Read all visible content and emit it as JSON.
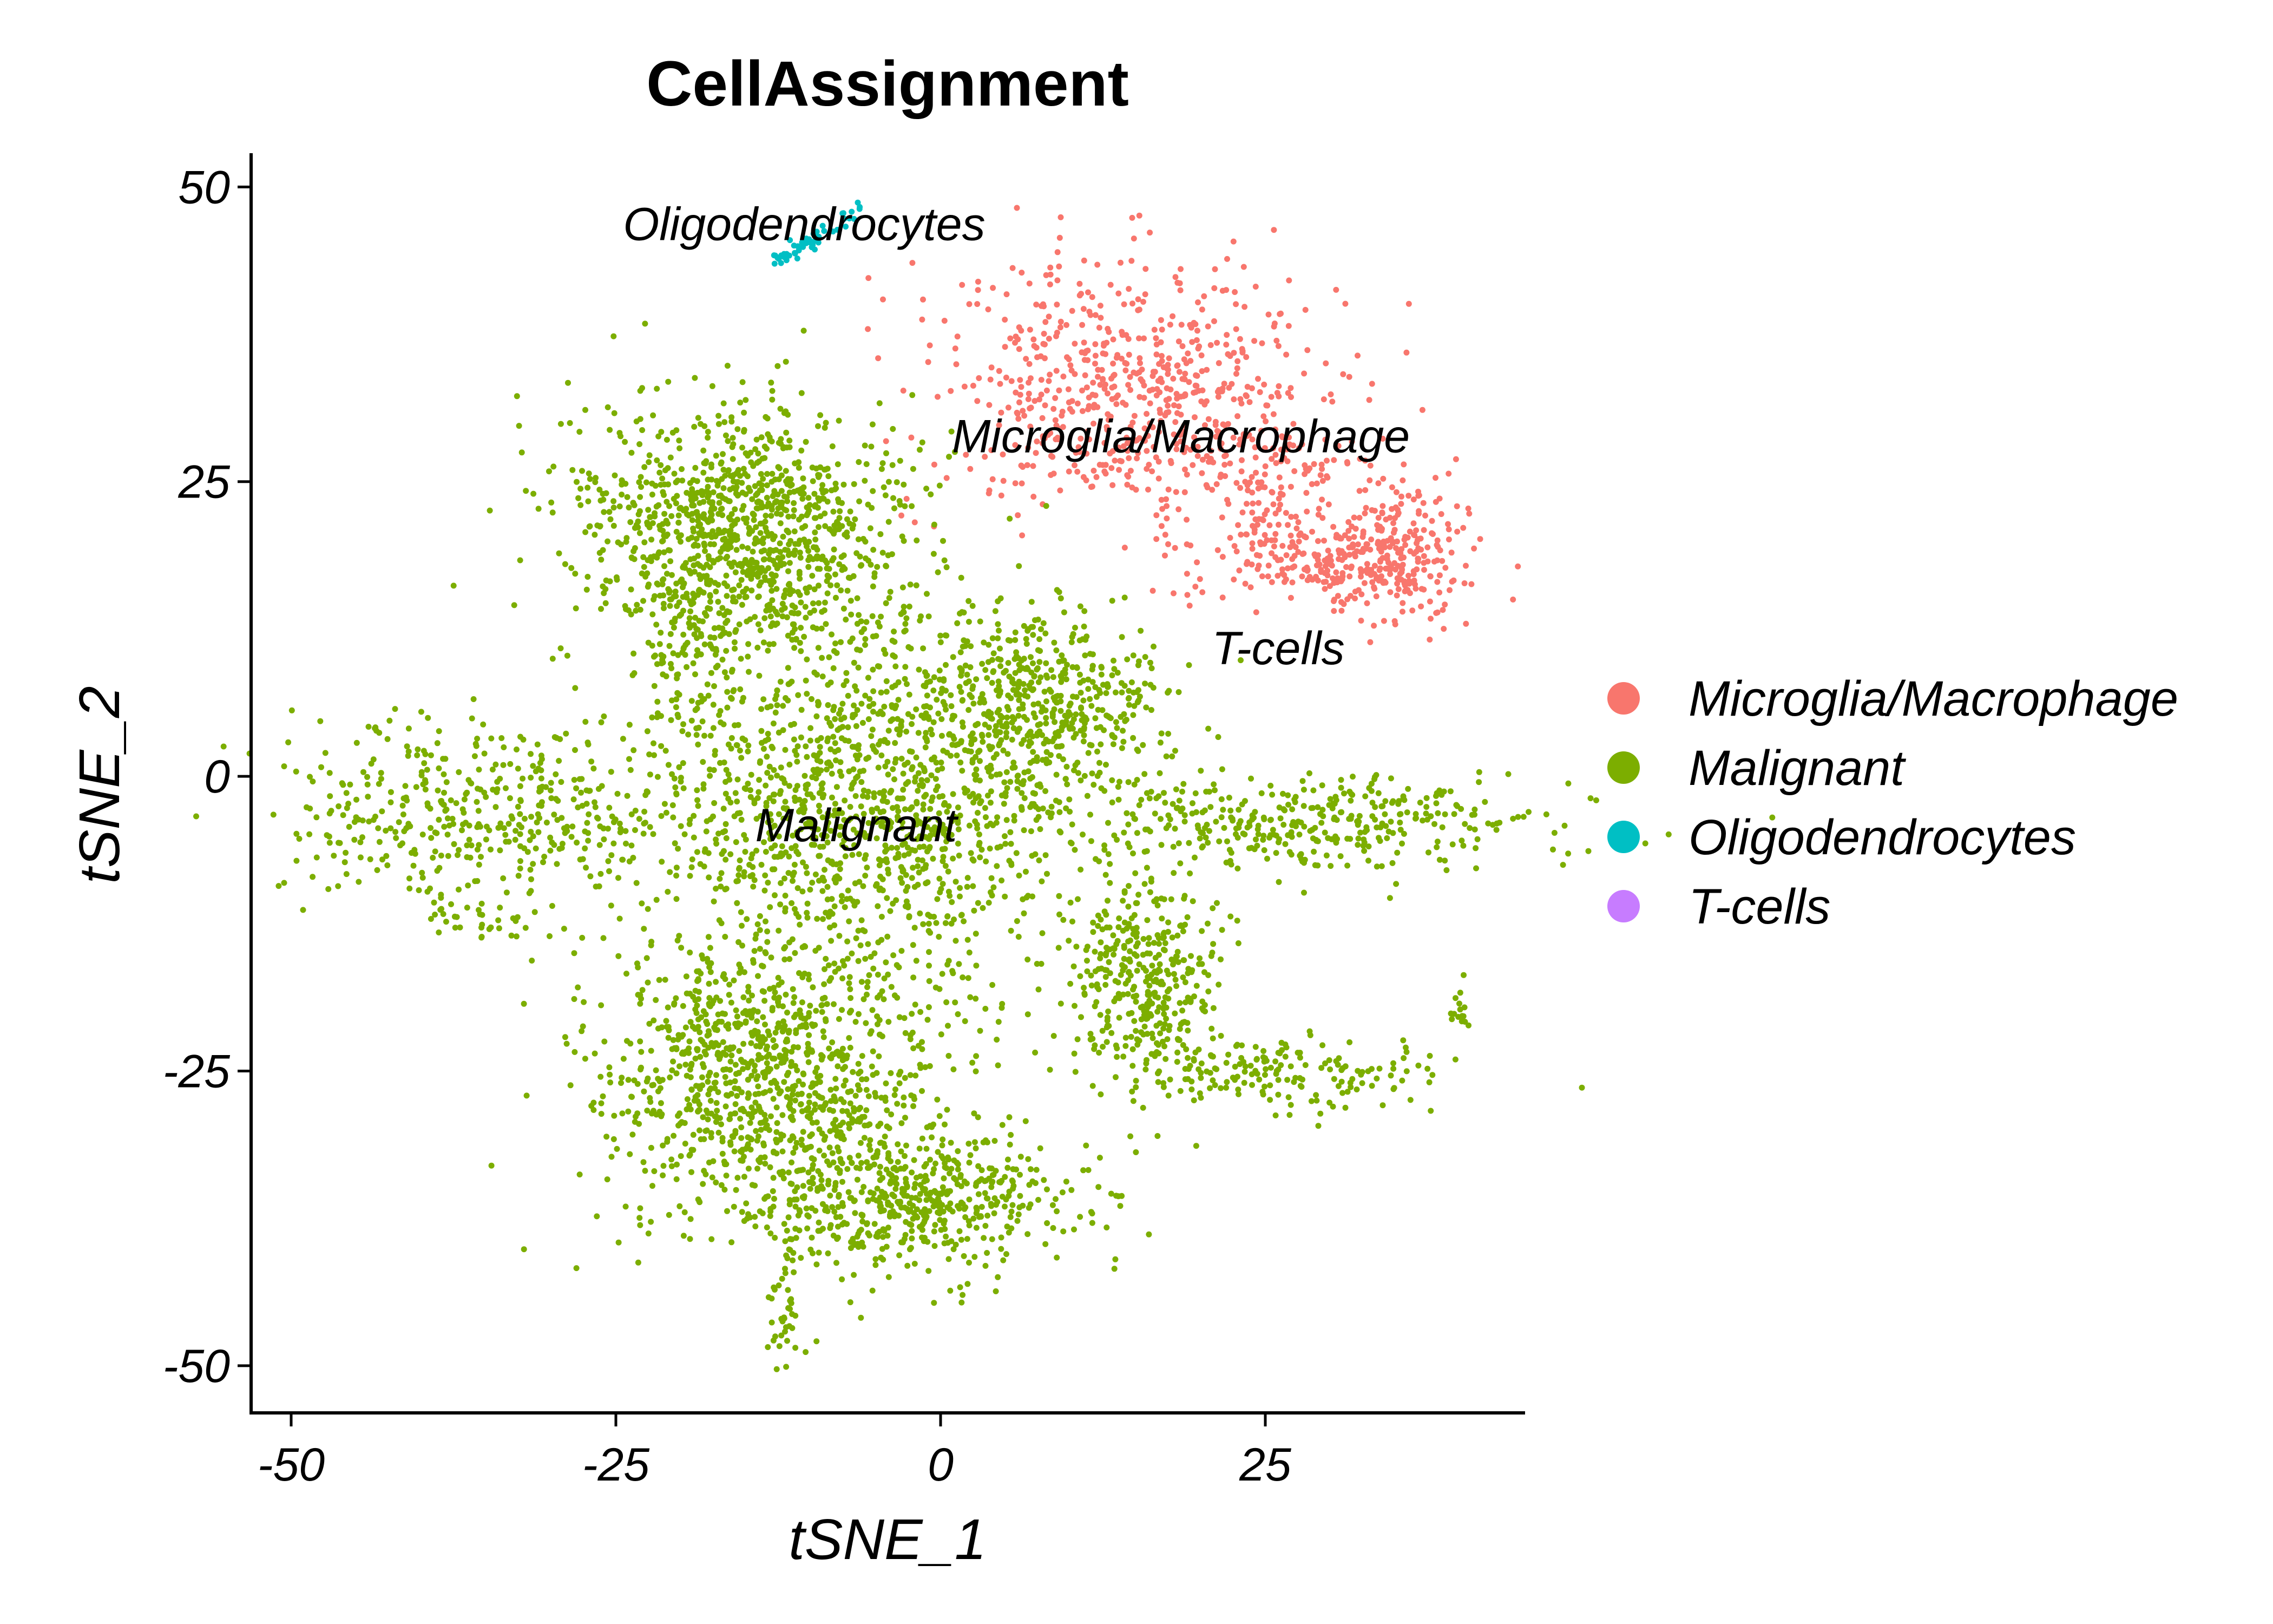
{
  "chart_data": {
    "type": "scatter",
    "title": "CellAssignment",
    "xlabel": "tSNE_1",
    "ylabel": "tSNE_2",
    "xlim": [
      -53,
      45
    ],
    "ylim": [
      -54,
      53
    ],
    "xticks": [
      -50,
      -25,
      0,
      25
    ],
    "yticks": [
      50,
      25,
      0,
      -25,
      -50
    ],
    "xtick_labels": [
      "-50",
      "-25",
      "0",
      "25"
    ],
    "ytick_labels": [
      "50",
      "25",
      "0",
      "-25",
      "-50"
    ],
    "grid": false,
    "legend": {
      "position": "right"
    },
    "series": [
      {
        "name": "Microglia/Macrophage",
        "color": "#F8766D",
        "clusters": [
          {
            "cx": 14,
            "cy": 33,
            "sx": 7.5,
            "sy": 5.5,
            "n": 620
          },
          {
            "cx": 26,
            "cy": 24,
            "sx": 4.5,
            "sy": 3.5,
            "n": 160
          },
          {
            "cx": 30,
            "cy": 18,
            "sx": 4.5,
            "sy": 2.2,
            "n": 220
          },
          {
            "cx": 36,
            "cy": 19,
            "sx": 2.2,
            "sy": 3.0,
            "n": 160
          }
        ]
      },
      {
        "name": "Malignant",
        "color": "#7CAE00",
        "clusters": [
          {
            "cx": -15,
            "cy": 21,
            "sx": 6.5,
            "sy": 5.0,
            "n": 1050
          },
          {
            "cx": -19,
            "cy": 11,
            "sx": 2.0,
            "sy": 4.0,
            "n": 120
          },
          {
            "cx": -6,
            "cy": -2,
            "sx": 8.5,
            "sy": 8.0,
            "n": 1300
          },
          {
            "cx": 8,
            "cy": 6,
            "sx": 5.0,
            "sy": 4.0,
            "n": 480
          },
          {
            "cx": 28,
            "cy": -4,
            "sx": 9.5,
            "sy": 2.0,
            "n": 380
          },
          {
            "cx": -39,
            "cy": -3,
            "sx": 6.0,
            "sy": 4.0,
            "n": 300
          },
          {
            "cx": -28,
            "cy": -3,
            "sx": 3.5,
            "sy": 3.5,
            "n": 130
          },
          {
            "cx": -35,
            "cy": -12,
            "sx": 2.0,
            "sy": 1.0,
            "n": 30
          },
          {
            "cx": -13,
            "cy": -26,
            "sx": 6.5,
            "sy": 6.0,
            "n": 1050
          },
          {
            "cx": -2,
            "cy": -36,
            "sx": 6.0,
            "sy": 3.0,
            "n": 520
          },
          {
            "cx": 16,
            "cy": -17,
            "sx": 3.0,
            "sy": 5.0,
            "n": 380
          },
          {
            "cx": 26,
            "cy": -25,
            "sx": 6.5,
            "sy": 1.6,
            "n": 170
          },
          {
            "cx": -12,
            "cy": -45,
            "sx": 0.7,
            "sy": 2.5,
            "n": 40
          },
          {
            "cx": 40,
            "cy": -20,
            "sx": 0.4,
            "sy": 1.5,
            "n": 15
          }
        ]
      },
      {
        "name": "Oligodendrocytes",
        "color": "#00BFC4",
        "clusters": [
          {
            "x0": -13,
            "y0": 43.5,
            "x1": -6,
            "y1": 48,
            "n": 60
          }
        ]
      },
      {
        "name": "T-cells",
        "color": "#C77CFF",
        "clusters": []
      }
    ],
    "annotations": [
      {
        "text": "Oligodendrocytes",
        "x": -10.5,
        "y": 45.5
      },
      {
        "text": "Microglia/Macrophage",
        "x": 18.5,
        "y": 27.5
      },
      {
        "text": "T-cells",
        "x": 26,
        "y": 9.5
      },
      {
        "text": "Malignant",
        "x": -6.5,
        "y": -5.5
      }
    ]
  }
}
